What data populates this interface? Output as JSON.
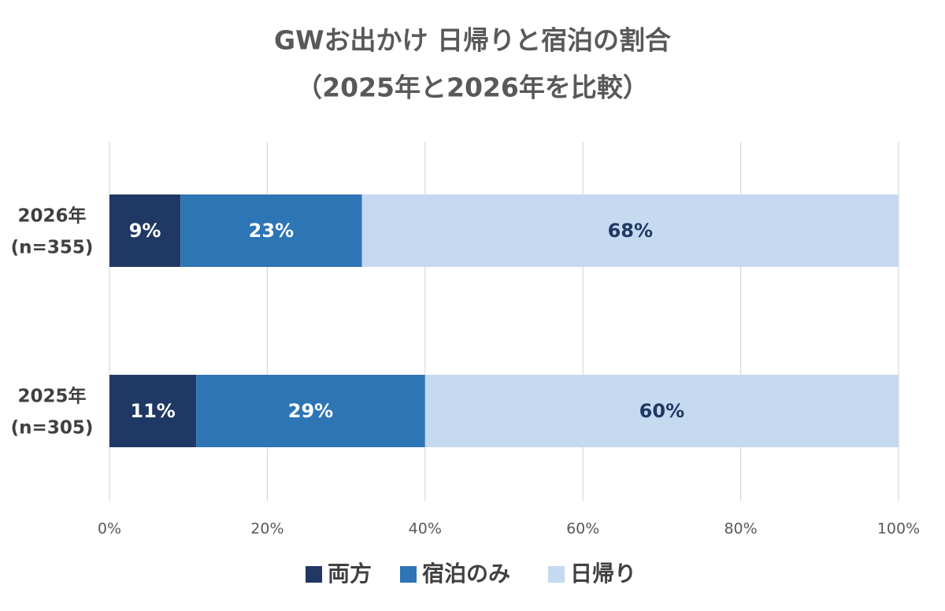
{
  "chart_data": {
    "type": "bar",
    "orientation": "horizontal",
    "stacked": true,
    "title_lines": [
      "GWお出かけ 日帰りと宿泊の割合",
      "（2025年と2026年を比較）"
    ],
    "categories": [
      [
        "2026年",
        "(n=355)"
      ],
      [
        "2025年",
        "(n=305)"
      ]
    ],
    "series": [
      {
        "name": "両方",
        "values": [
          9,
          11
        ],
        "labels": [
          "9%",
          "11%"
        ],
        "color": "#203864",
        "label_color": "#ffffff"
      },
      {
        "name": "宿泊のみ",
        "values": [
          23,
          29
        ],
        "labels": [
          "23%",
          "29%"
        ],
        "color": "#2e75b6",
        "label_color": "#ffffff"
      },
      {
        "name": "日帰り",
        "values": [
          68,
          60
        ],
        "labels": [
          "68%",
          "60%"
        ],
        "color": "#c5d9f0",
        "label_color": "#1f3864"
      }
    ],
    "xlim": [
      0,
      100
    ],
    "xticks": [
      "0%",
      "20%",
      "40%",
      "60%",
      "80%",
      "100%"
    ],
    "grid": true,
    "legend_position": "bottom"
  }
}
